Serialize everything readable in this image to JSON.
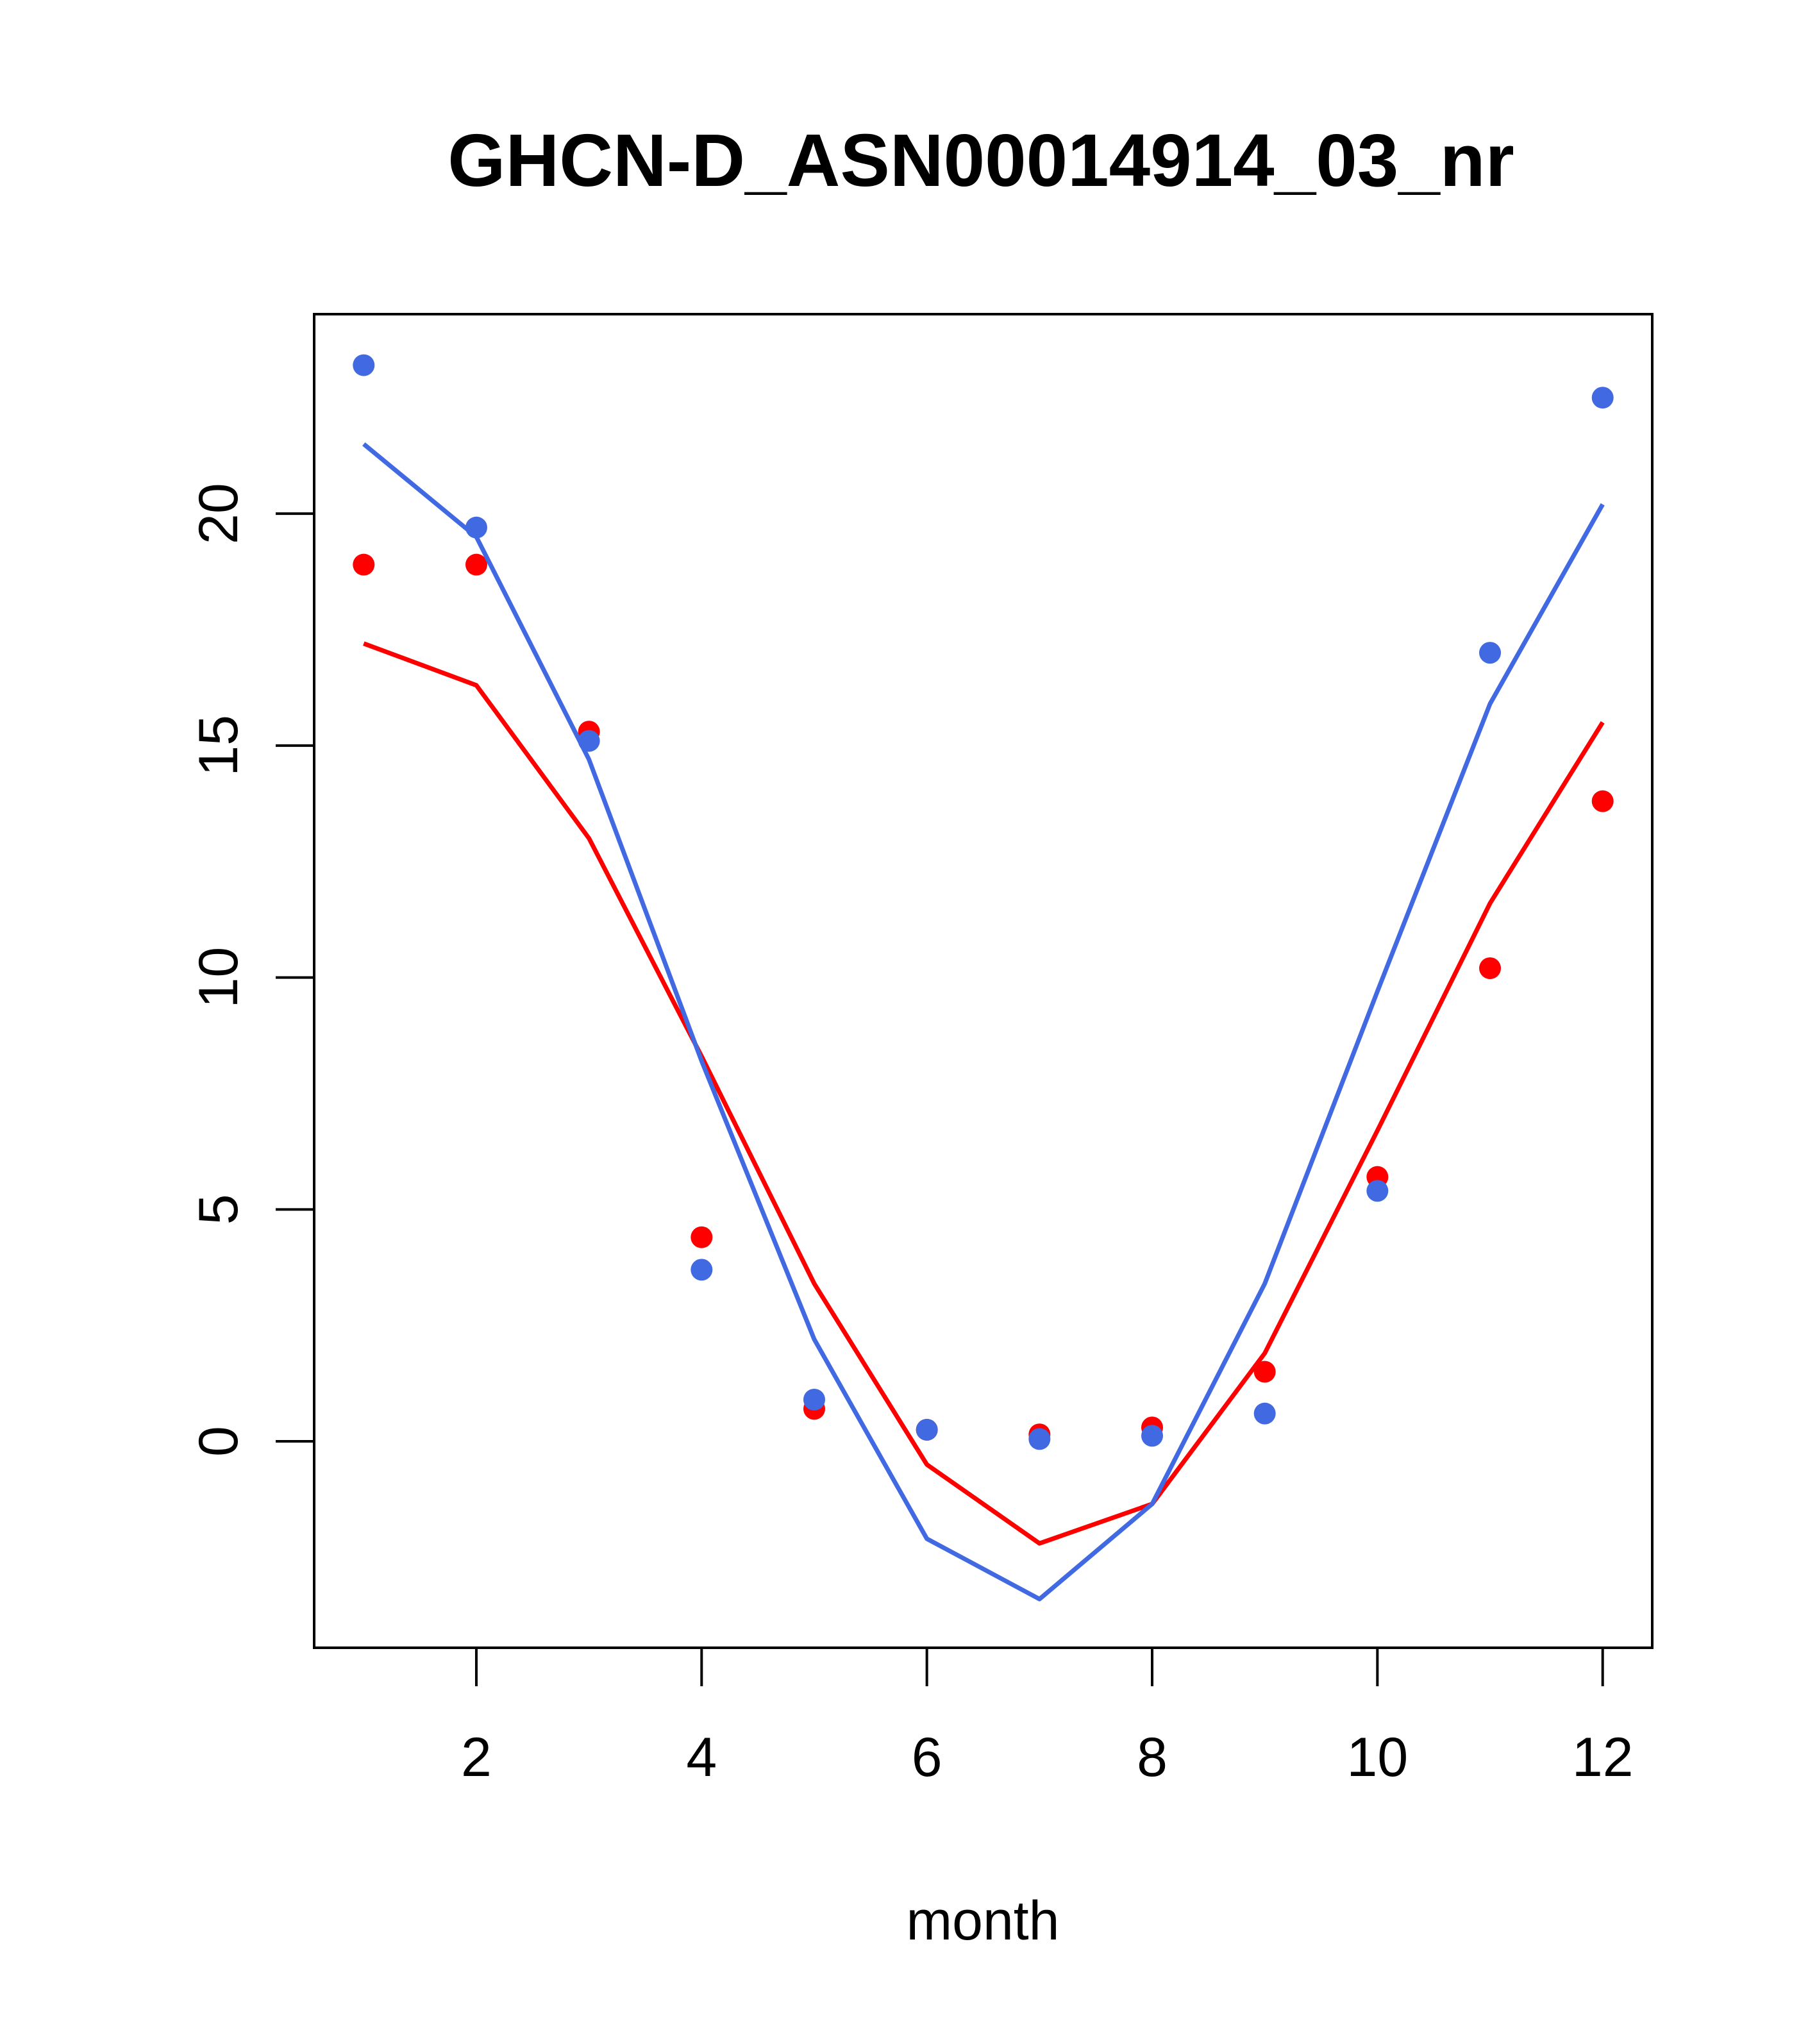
{
  "chart_data": {
    "type": "line",
    "title": "GHCN-D_ASN00014914_03_nr",
    "xlabel": "month",
    "ylabel": "",
    "xlim": [
      0.56,
      12.44
    ],
    "ylim": [
      -4.45,
      24.3
    ],
    "x_ticks": [
      2,
      4,
      6,
      8,
      10,
      12
    ],
    "y_ticks": [
      0,
      5,
      10,
      15,
      20
    ],
    "grid": false,
    "legend": "none",
    "series": [
      {
        "color": "#FF0000",
        "x": [
          1,
          2,
          3,
          4,
          5,
          6,
          7,
          8,
          9,
          10,
          11,
          12
        ],
        "points": [
          18.9,
          18.9,
          15.3,
          4.4,
          0.7,
          0.25,
          0.15,
          0.3,
          1.5,
          5.7,
          10.2,
          13.8
        ],
        "fit": [
          17.2,
          16.3,
          13.0,
          8.3,
          3.4,
          -0.5,
          -2.2,
          -1.35,
          1.9,
          6.7,
          11.6,
          15.5
        ]
      },
      {
        "color": "#4169E1",
        "x": [
          1,
          2,
          3,
          4,
          5,
          6,
          7,
          8,
          9,
          10,
          11,
          12
        ],
        "points": [
          23.2,
          19.7,
          15.1,
          3.7,
          0.9,
          0.25,
          0.05,
          0.12,
          0.6,
          5.4,
          17.0,
          22.5
        ],
        "fit": [
          21.5,
          19.5,
          14.7,
          8.2,
          2.2,
          -2.1,
          -3.4,
          -1.35,
          3.4,
          9.7,
          15.9,
          20.2
        ]
      }
    ]
  }
}
